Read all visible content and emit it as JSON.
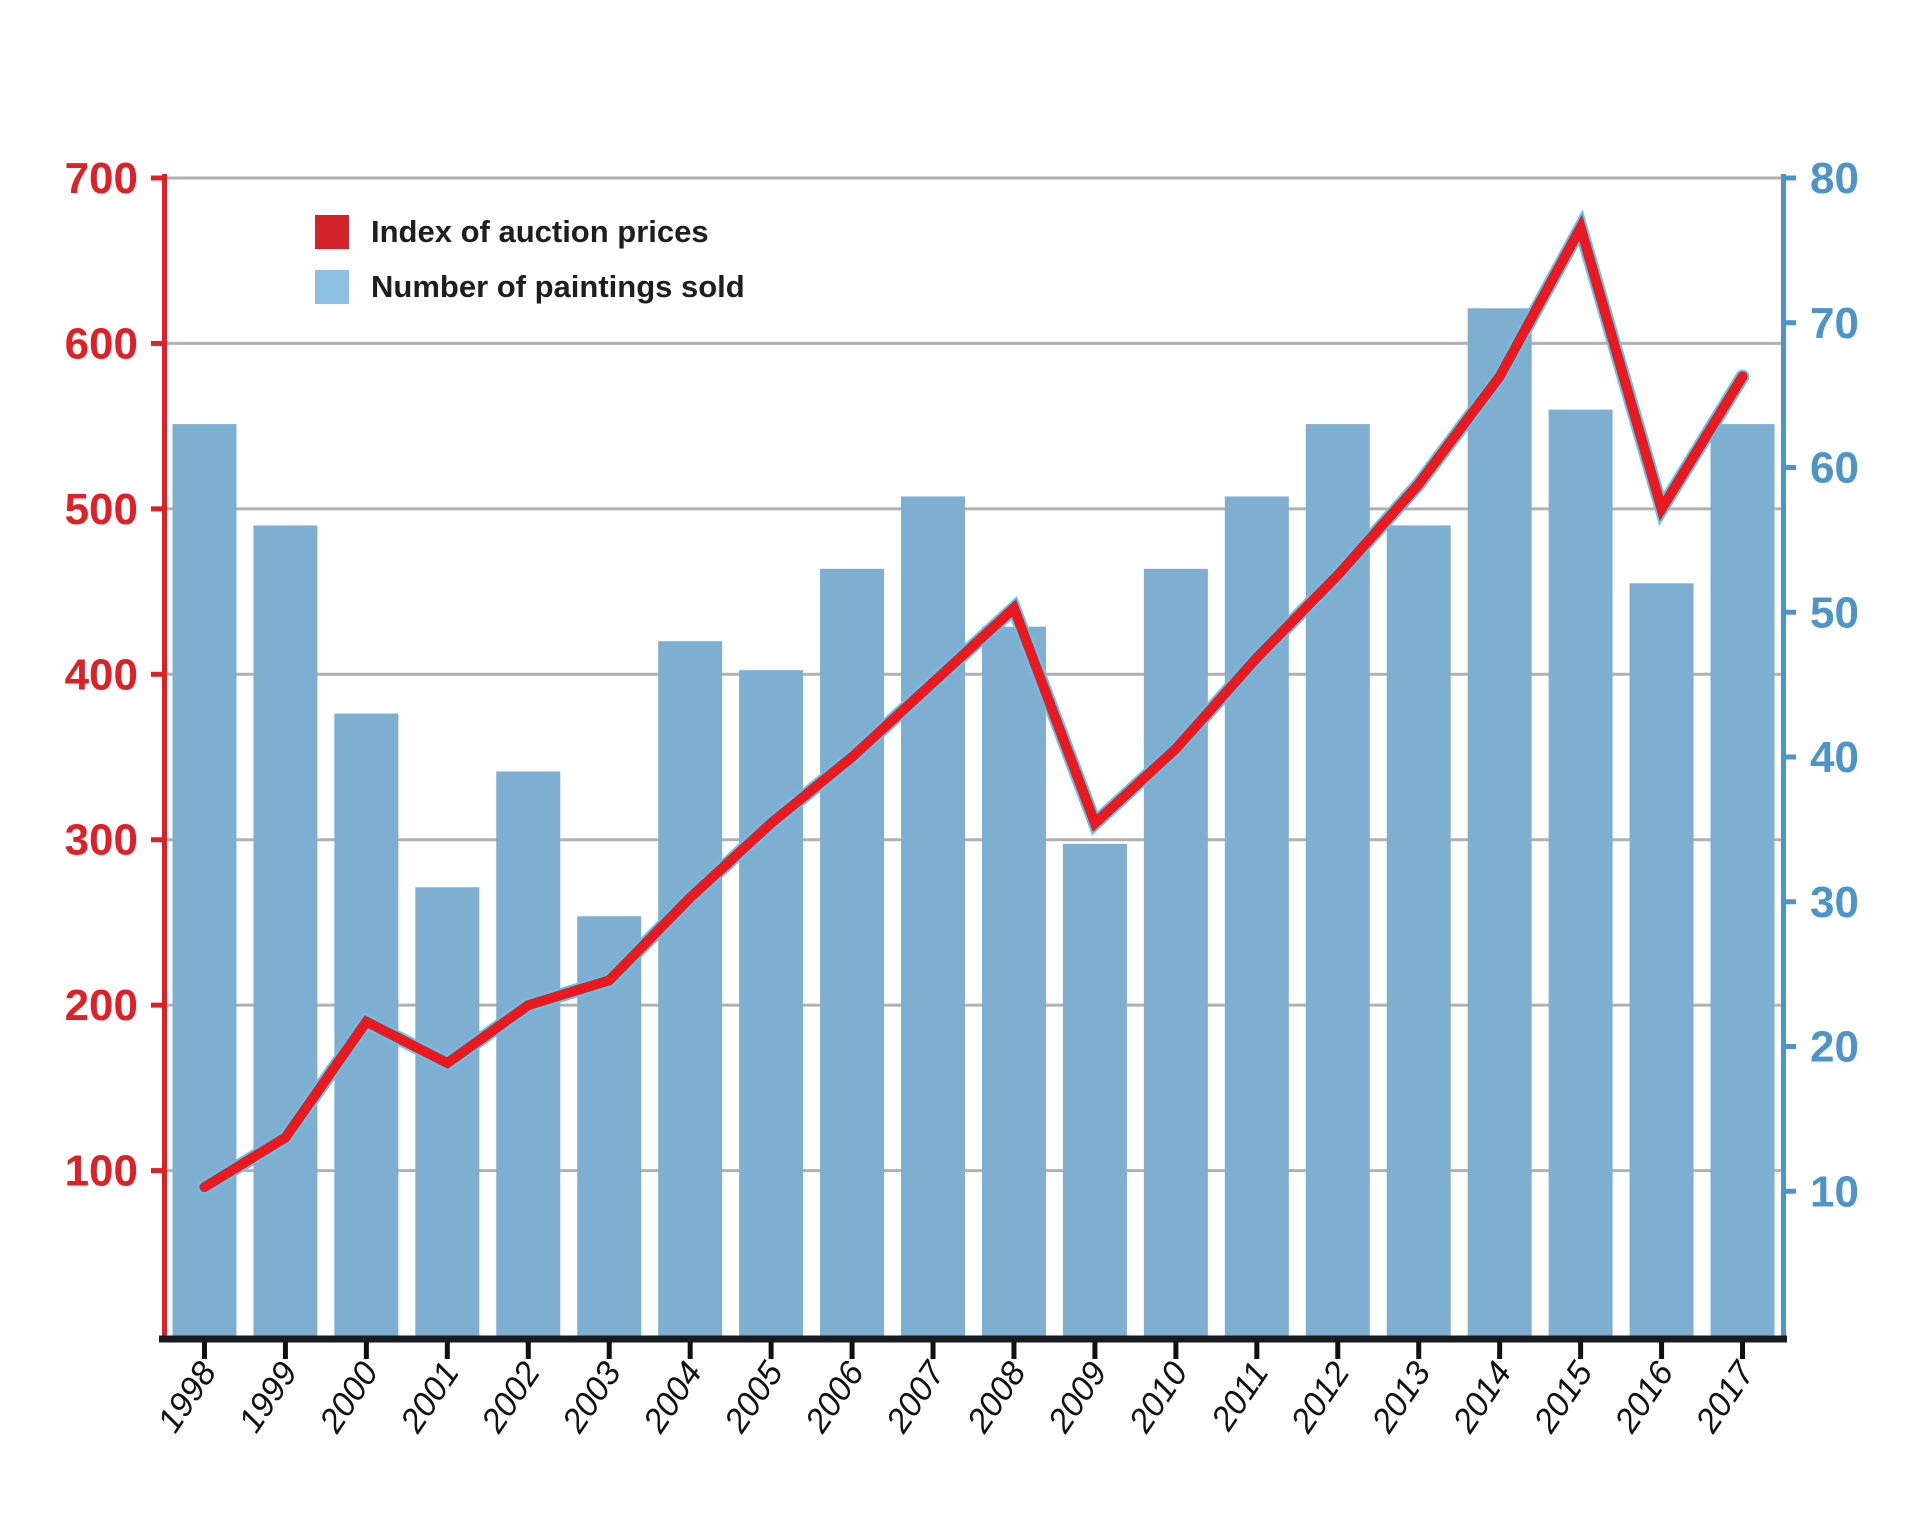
{
  "legend": {
    "items": [
      {
        "label": "Index of auction prices",
        "color": "#d2232a"
      },
      {
        "label": "Number of paintings sold",
        "color": "#8cc1e1"
      }
    ]
  },
  "chart_data": {
    "type": "combo-bar-line",
    "categories": [
      "1998",
      "1999",
      "2000",
      "2001",
      "2002",
      "2003",
      "2004",
      "2005",
      "2006",
      "2007",
      "2008",
      "2009",
      "2010",
      "2011",
      "2012",
      "2013",
      "2014",
      "2015",
      "2016",
      "2017"
    ],
    "series": [
      {
        "name": "Number of paintings sold",
        "type": "bar",
        "axis": "right",
        "color": "#7eafd1",
        "values": [
          63,
          56,
          43,
          31,
          39,
          29,
          48,
          46,
          53,
          58,
          49,
          34,
          53,
          58,
          63,
          56,
          71,
          64,
          52,
          63
        ]
      },
      {
        "name": "Index of auction prices",
        "type": "line",
        "axis": "left",
        "color": "#e8191f",
        "halo_color": "#5bc6ee",
        "values": [
          90,
          120,
          190,
          165,
          200,
          215,
          265,
          310,
          350,
          395,
          440,
          310,
          355,
          410,
          460,
          515,
          580,
          670,
          500,
          580
        ]
      }
    ],
    "left_axis": {
      "min": 0,
      "max": 700,
      "ticks": [
        100,
        200,
        300,
        400,
        500,
        600,
        700
      ],
      "color": "#df2127"
    },
    "right_axis": {
      "min": 0,
      "max": 80,
      "ticks": [
        10,
        20,
        30,
        40,
        50,
        60,
        70,
        80
      ],
      "color": "#4d94c8"
    },
    "grid": {
      "values": [
        100,
        200,
        300,
        400,
        500,
        600,
        700
      ],
      "color": "#b1b1b1"
    },
    "baseline_color": "#171b21",
    "x_tick_color": "#101010",
    "x_label_color": "#111111",
    "legend_position": "top-left",
    "grid_on": true
  }
}
